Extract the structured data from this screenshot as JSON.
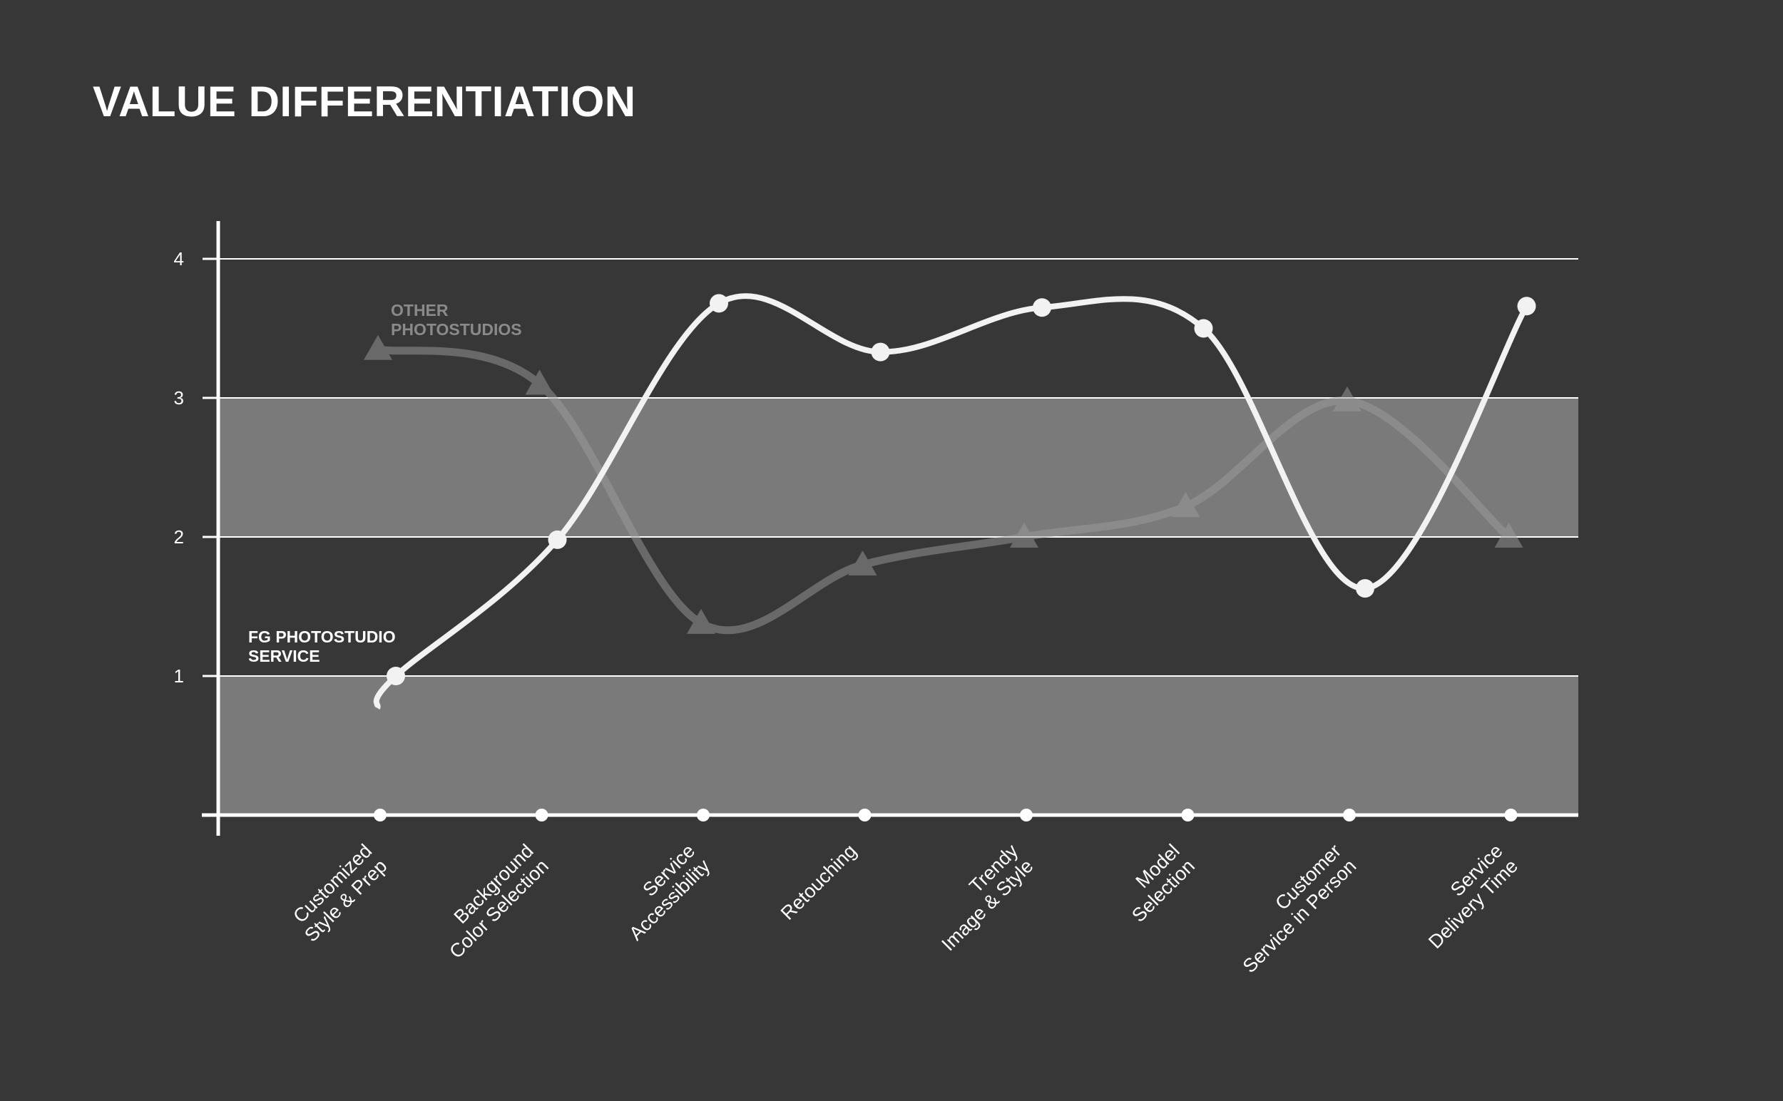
{
  "title": "VALUE DIFFERENTIATION",
  "colors": {
    "background": "#373737",
    "band": "#7a7a7a",
    "axis": "#ffffff",
    "gridline": "#ffffff",
    "primary_series": "#f2f2f2",
    "secondary_series": "#9c9c9c",
    "secondary_label": "#8a8a8a"
  },
  "chart_data": {
    "type": "line",
    "title": "VALUE DIFFERENTIATION",
    "xlabel": "",
    "ylabel": "",
    "ylim": [
      0,
      4
    ],
    "yticks": [
      1,
      2,
      3,
      4
    ],
    "grid": true,
    "shaded_bands": [
      [
        0,
        1
      ],
      [
        2,
        3
      ]
    ],
    "categories": [
      [
        "Customized",
        "Style & Prep"
      ],
      [
        "Background",
        "Color Selection"
      ],
      [
        "Service",
        "Accessibility"
      ],
      [
        "Retouching"
      ],
      [
        "Trendy",
        "Image & Style"
      ],
      [
        "Model",
        "Selection"
      ],
      [
        "Customer",
        "Service in Person"
      ],
      [
        "Service",
        "Delivery Time"
      ]
    ],
    "series": [
      {
        "name": "OTHER PHOTOSTUDIOS",
        "label_lines": [
          "OTHER",
          "PHOTOSTUDIOS"
        ],
        "marker": "triangle",
        "values": [
          3.35,
          3.1,
          1.38,
          1.8,
          2.0,
          2.22,
          2.98,
          2.0
        ]
      },
      {
        "name": "FG PHOTOSTUDIO SERVICE",
        "label_lines": [
          "FG PHOTOSTUDIO",
          "SERVICE"
        ],
        "marker": "circle",
        "values": [
          1.0,
          1.98,
          3.68,
          3.33,
          3.65,
          3.5,
          1.63,
          3.66
        ]
      }
    ]
  }
}
